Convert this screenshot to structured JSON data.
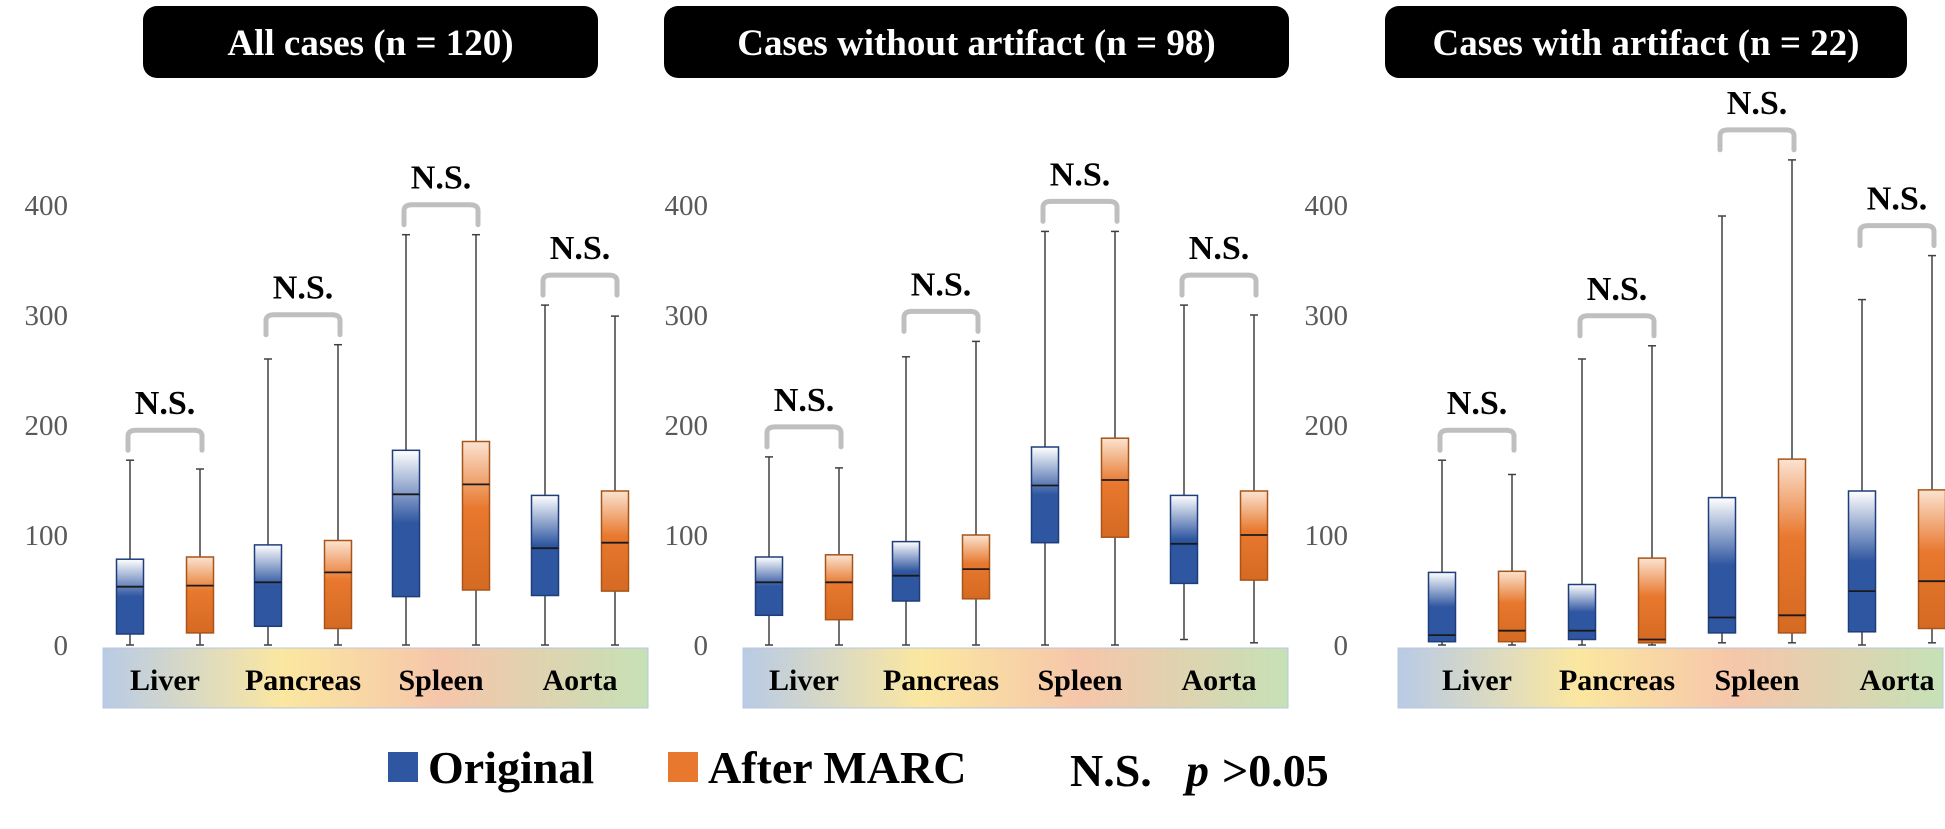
{
  "chart_data": {
    "type": "boxplot",
    "ylim": [
      0,
      400
    ],
    "yticks": [
      0,
      100,
      200,
      300,
      400
    ],
    "categories": [
      "Liver",
      "Pancreas",
      "Spleen",
      "Aorta"
    ],
    "series_names": [
      "Original",
      "After MARC"
    ],
    "colors": {
      "original": "#2f56a0",
      "after": "#e8782e",
      "bracket": "#bfbfbf"
    },
    "significance_label": "N.S.",
    "legend": {
      "original": "Original",
      "after": "After MARC",
      "ns_abbrev": "N.S.",
      "p_symbol": "p",
      "p_threshold": ">0.05"
    },
    "panels": [
      {
        "title": "All cases (n = 120)",
        "groups": [
          {
            "category": "Liver",
            "original": {
              "min": 0,
              "q1": 10,
              "median": 53,
              "q3": 78,
              "max": 168
            },
            "after": {
              "min": 0,
              "q1": 11,
              "median": 54,
              "q3": 80,
              "max": 160
            }
          },
          {
            "category": "Pancreas",
            "original": {
              "min": 0,
              "q1": 17,
              "median": 57,
              "q3": 91,
              "max": 260
            },
            "after": {
              "min": 0,
              "q1": 15,
              "median": 66,
              "q3": 95,
              "max": 273
            }
          },
          {
            "category": "Spleen",
            "original": {
              "min": 0,
              "q1": 44,
              "median": 137,
              "q3": 177,
              "max": 373
            },
            "after": {
              "min": 0,
              "q1": 50,
              "median": 146,
              "q3": 185,
              "max": 373
            }
          },
          {
            "category": "Aorta",
            "original": {
              "min": 0,
              "q1": 45,
              "median": 88,
              "q3": 136,
              "max": 309
            },
            "after": {
              "min": 0,
              "q1": 49,
              "median": 93,
              "q3": 140,
              "max": 299
            }
          }
        ]
      },
      {
        "title": "Cases without artifact (n = 98)",
        "groups": [
          {
            "category": "Liver",
            "original": {
              "min": 0,
              "q1": 27,
              "median": 57,
              "q3": 80,
              "max": 171
            },
            "after": {
              "min": 0,
              "q1": 23,
              "median": 57,
              "q3": 82,
              "max": 161
            }
          },
          {
            "category": "Pancreas",
            "original": {
              "min": 0,
              "q1": 40,
              "median": 63,
              "q3": 94,
              "max": 262
            },
            "after": {
              "min": 0,
              "q1": 42,
              "median": 69,
              "q3": 100,
              "max": 276
            }
          },
          {
            "category": "Spleen",
            "original": {
              "min": 0,
              "q1": 93,
              "median": 145,
              "q3": 180,
              "max": 376
            },
            "after": {
              "min": 0,
              "q1": 98,
              "median": 150,
              "q3": 188,
              "max": 376
            }
          },
          {
            "category": "Aorta",
            "original": {
              "min": 5,
              "q1": 56,
              "median": 92,
              "q3": 136,
              "max": 309
            },
            "after": {
              "min": 2,
              "q1": 59,
              "median": 100,
              "q3": 140,
              "max": 300
            }
          }
        ]
      },
      {
        "title": "Cases with artifact (n = 22)",
        "groups": [
          {
            "category": "Liver",
            "original": {
              "min": 0,
              "q1": 3,
              "median": 9,
              "q3": 66,
              "max": 168
            },
            "after": {
              "min": 0,
              "q1": 3,
              "median": 13,
              "q3": 67,
              "max": 155
            }
          },
          {
            "category": "Pancreas",
            "original": {
              "min": 0,
              "q1": 5,
              "median": 13,
              "q3": 55,
              "max": 260
            },
            "after": {
              "min": 0,
              "q1": 2,
              "median": 5,
              "q3": 79,
              "max": 272
            }
          },
          {
            "category": "Spleen",
            "original": {
              "min": 2,
              "q1": 11,
              "median": 25,
              "q3": 134,
              "max": 390
            },
            "after": {
              "min": 2,
              "q1": 11,
              "median": 27,
              "q3": 169,
              "max": 441
            }
          },
          {
            "category": "Aorta",
            "original": {
              "min": 0,
              "q1": 12,
              "median": 49,
              "q3": 140,
              "max": 314
            },
            "after": {
              "min": 2,
              "q1": 15,
              "median": 58,
              "q3": 141,
              "max": 354
            }
          }
        ]
      }
    ]
  }
}
